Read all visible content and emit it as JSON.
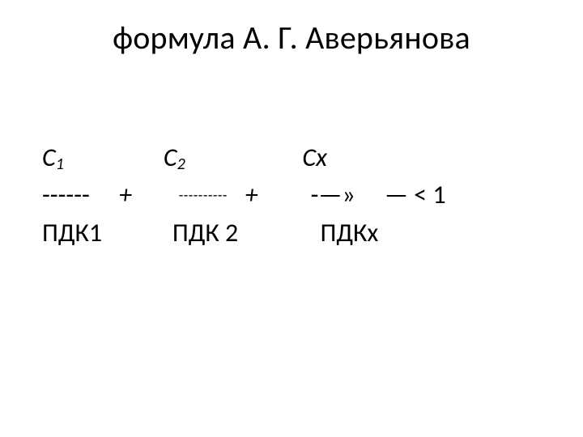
{
  "title": "формула А. Г. Аверьянова",
  "formula": {
    "r1": {
      "c1": "С",
      "c1sub": "1",
      "c2": "С",
      "c2sub": "2",
      "cx": "Сх"
    },
    "r2": {
      "dash1": "------",
      "plus1": "+",
      "dash2": "----------",
      "plus2": "+",
      "arrow": "-—»",
      "cmp": "— < 1"
    },
    "r3": {
      "p1": "ПДК1",
      "p2": "ПДК 2",
      "px": "ПДКх"
    }
  },
  "style": {
    "background": "#ffffff",
    "text_color": "#000000",
    "title_fontsize": 40,
    "body_fontsize": 32,
    "sub_fontsize": 20,
    "dash_mid_fontsize": 18,
    "font_family": "Calibri, Arial, sans-serif"
  }
}
